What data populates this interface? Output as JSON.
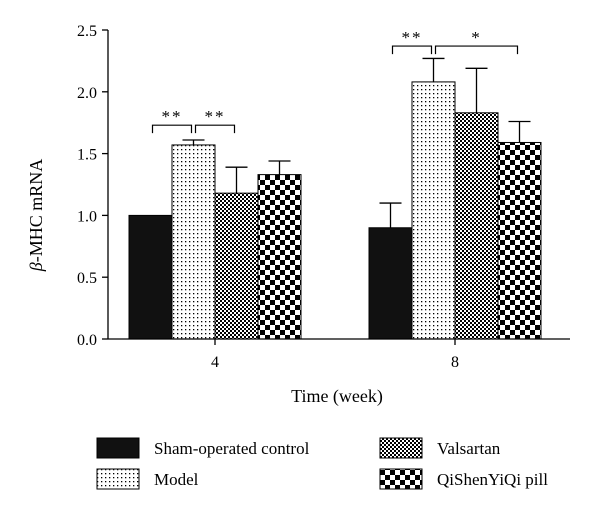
{
  "chart_data": {
    "type": "bar",
    "xlabel": "Time (week)",
    "ylabel": {
      "prefix": "β",
      "rest": "-MHC mRNA"
    },
    "ylim": [
      0,
      2.5
    ],
    "yticks": [
      0.0,
      0.5,
      1.0,
      1.5,
      2.0,
      2.5
    ],
    "ytick_labels": [
      "0.0",
      "0.5",
      "1.0",
      "1.5",
      "2.0",
      "2.5"
    ],
    "categories": [
      "4",
      "8"
    ],
    "grid": false,
    "legend_position": "bottom",
    "series": [
      {
        "name": "Sham-operated control",
        "pattern": "solid",
        "values": [
          1.0,
          0.9
        ],
        "errors": [
          0.0,
          0.2
        ]
      },
      {
        "name": "Model",
        "pattern": "dots",
        "values": [
          1.57,
          2.08
        ],
        "errors": [
          0.04,
          0.19
        ]
      },
      {
        "name": "Valsartan",
        "pattern": "dense-check",
        "values": [
          1.18,
          1.83
        ],
        "errors": [
          0.21,
          0.36
        ]
      },
      {
        "name": "QiShenYiQi pill",
        "pattern": "check",
        "values": [
          1.33,
          1.59
        ],
        "errors": [
          0.11,
          0.17
        ]
      }
    ],
    "significance": [
      {
        "category": "4",
        "from_series": 0,
        "to_series": 1,
        "label": "**",
        "level": 1.73
      },
      {
        "category": "4",
        "from_series": 1,
        "to_series": 2,
        "label": "**",
        "level": 1.73
      },
      {
        "category": "8",
        "from_series": 0,
        "to_series": 1,
        "label": "**",
        "level": 2.37
      },
      {
        "category": "8",
        "from_series": 1,
        "to_series": 3,
        "label": "*",
        "level": 2.37
      }
    ]
  }
}
